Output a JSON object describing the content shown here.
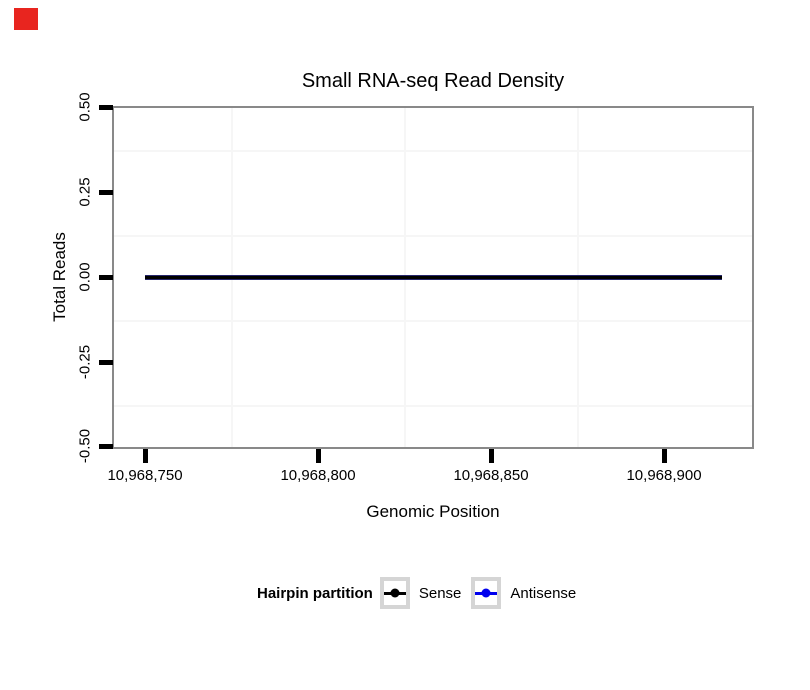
{
  "title": {
    "text": "Small RNA-seq Read Density"
  },
  "axes": {
    "x": {
      "label": "Genomic Position",
      "ticks": [
        "10,968,750",
        "10,968,800",
        "10,968,850",
        "10,968,900"
      ]
    },
    "y": {
      "label": "Total Reads",
      "ticks": [
        "0.50",
        "0.25",
        "0.00",
        "-0.25",
        "-0.50"
      ]
    }
  },
  "legend": {
    "title": "Hairpin partition",
    "items": [
      {
        "label": "Sense",
        "color": "#000000"
      },
      {
        "label": "Antisense",
        "color": "#0000ee"
      }
    ]
  },
  "colors": {
    "red_marker": "#e8251f",
    "panel_border": "#898989",
    "grid_minor": "#f6f6f6",
    "overlapped_line": "#26266b",
    "sense": "#000000",
    "antisense": "#0000ee"
  },
  "chart_data": {
    "type": "line",
    "title": "Small RNA-seq Read Density",
    "xlabel": "Genomic Position",
    "ylabel": "Total Reads",
    "xlim": [
      10968740,
      10968926
    ],
    "ylim": [
      -0.5,
      0.5
    ],
    "x_ticks": [
      10968750,
      10968800,
      10968850,
      10968900
    ],
    "x_tick_labels": [
      "10,968,750",
      "10,968,800",
      "10,968,850",
      "10,968,900"
    ],
    "y_ticks": [
      0.5,
      0.25,
      0.0,
      -0.25,
      -0.5
    ],
    "y_tick_labels": [
      "0.50",
      "0.25",
      "0.00",
      "-0.25",
      "-0.50"
    ],
    "grid": {
      "major": false,
      "minor": true
    },
    "legend_position": "bottom",
    "legend_title": "Hairpin partition",
    "series": [
      {
        "name": "Sense",
        "color": "#000000",
        "x": [
          10968750,
          10968917
        ],
        "y": [
          0,
          0
        ]
      },
      {
        "name": "Antisense",
        "color": "#0000ee",
        "x": [
          10968750,
          10968917
        ],
        "y": [
          0,
          0
        ]
      }
    ]
  }
}
